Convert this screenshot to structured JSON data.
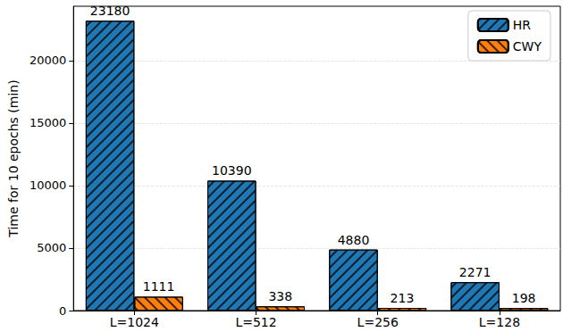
{
  "chart_data": {
    "type": "bar",
    "y_label": "Time for 10 epochs (min)",
    "categories": [
      "L=1024",
      "L=512",
      "L=256",
      "L=128"
    ],
    "series": [
      {
        "name": "HR",
        "color": "#1f77b4",
        "values": [
          23180,
          10390,
          4880,
          2271
        ]
      },
      {
        "name": "CWY",
        "color": "#ff7f0e",
        "values": [
          1111,
          338,
          213,
          198
        ]
      }
    ],
    "ylim": [
      0,
      24339
    ],
    "yticks": [
      0,
      5000,
      10000,
      15000,
      20000
    ],
    "grid": true,
    "legend": "upper right",
    "data_labels": true
  }
}
